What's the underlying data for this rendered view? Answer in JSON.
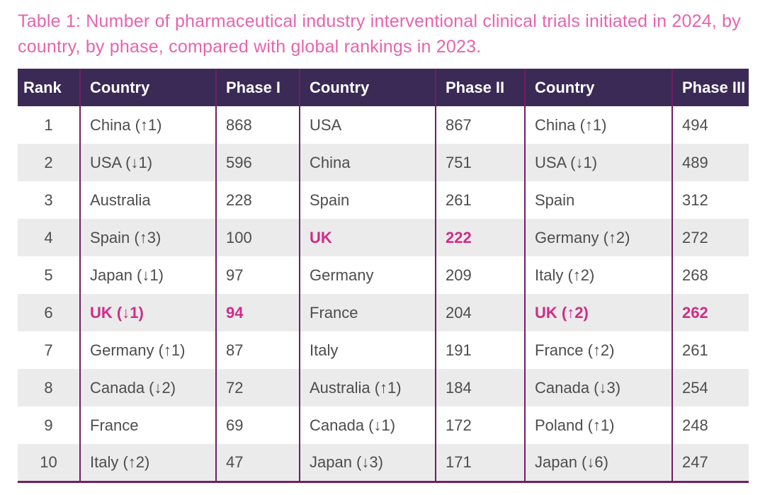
{
  "title": "Table 1: Number of pharmaceutical industry interventional clinical trials initiated in 2024, by country, by phase, compared with global rankings in 2023.",
  "table": {
    "columns": [
      "Rank",
      "Country",
      "Phase I",
      "Country",
      "Phase II",
      "Country",
      "Phase III"
    ],
    "rows": [
      {
        "rank": "1",
        "cols": [
          {
            "t": "China (↑1)"
          },
          {
            "t": "868"
          },
          {
            "t": "USA"
          },
          {
            "t": "867"
          },
          {
            "t": "China (↑1)"
          },
          {
            "t": "494"
          }
        ]
      },
      {
        "rank": "2",
        "cols": [
          {
            "t": "USA (↓1)"
          },
          {
            "t": "596"
          },
          {
            "t": "China"
          },
          {
            "t": "751"
          },
          {
            "t": "USA (↓1)"
          },
          {
            "t": "489"
          }
        ]
      },
      {
        "rank": "3",
        "cols": [
          {
            "t": "Australia"
          },
          {
            "t": "228"
          },
          {
            "t": "Spain"
          },
          {
            "t": "261"
          },
          {
            "t": "Spain"
          },
          {
            "t": "312"
          }
        ]
      },
      {
        "rank": "4",
        "cols": [
          {
            "t": "Spain (↑3)"
          },
          {
            "t": "100"
          },
          {
            "t": "UK",
            "hl": true
          },
          {
            "t": "222",
            "hl": true
          },
          {
            "t": "Germany (↑2)"
          },
          {
            "t": "272"
          }
        ]
      },
      {
        "rank": "5",
        "cols": [
          {
            "t": "Japan (↓1)"
          },
          {
            "t": "97"
          },
          {
            "t": "Germany"
          },
          {
            "t": "209"
          },
          {
            "t": "Italy (↑2)"
          },
          {
            "t": "268"
          }
        ]
      },
      {
        "rank": "6",
        "cols": [
          {
            "t": "UK (↓1)",
            "hl": true
          },
          {
            "t": "94",
            "hl": true
          },
          {
            "t": "France"
          },
          {
            "t": "204"
          },
          {
            "t": "UK (↑2)",
            "hl": true
          },
          {
            "t": "262",
            "hl": true
          }
        ]
      },
      {
        "rank": "7",
        "cols": [
          {
            "t": "Germany (↑1)"
          },
          {
            "t": "87"
          },
          {
            "t": "Italy"
          },
          {
            "t": "191"
          },
          {
            "t": "France (↑2)"
          },
          {
            "t": "261"
          }
        ]
      },
      {
        "rank": "8",
        "cols": [
          {
            "t": "Canada (↓2)"
          },
          {
            "t": "72"
          },
          {
            "t": "Australia (↑1)"
          },
          {
            "t": "184"
          },
          {
            "t": "Canada (↓3)"
          },
          {
            "t": "254"
          }
        ]
      },
      {
        "rank": "9",
        "cols": [
          {
            "t": "France"
          },
          {
            "t": "69"
          },
          {
            "t": "Canada (↓1)"
          },
          {
            "t": "172"
          },
          {
            "t": "Poland (↑1)"
          },
          {
            "t": "248"
          }
        ]
      },
      {
        "rank": "10",
        "cols": [
          {
            "t": "Italy (↑2)"
          },
          {
            "t": "47"
          },
          {
            "t": "Japan (↓3)"
          },
          {
            "t": "171"
          },
          {
            "t": "Japan (↓6)"
          },
          {
            "t": "247"
          }
        ]
      }
    ]
  },
  "colors": {
    "title_pink": "#e763af",
    "header_bg": "#3a2a55",
    "header_text": "#ffffff",
    "divider": "#6e2063",
    "row_alt_bg": "#ebebeb",
    "body_text": "#4d4d4d",
    "highlight_pink": "#ce2d87"
  }
}
